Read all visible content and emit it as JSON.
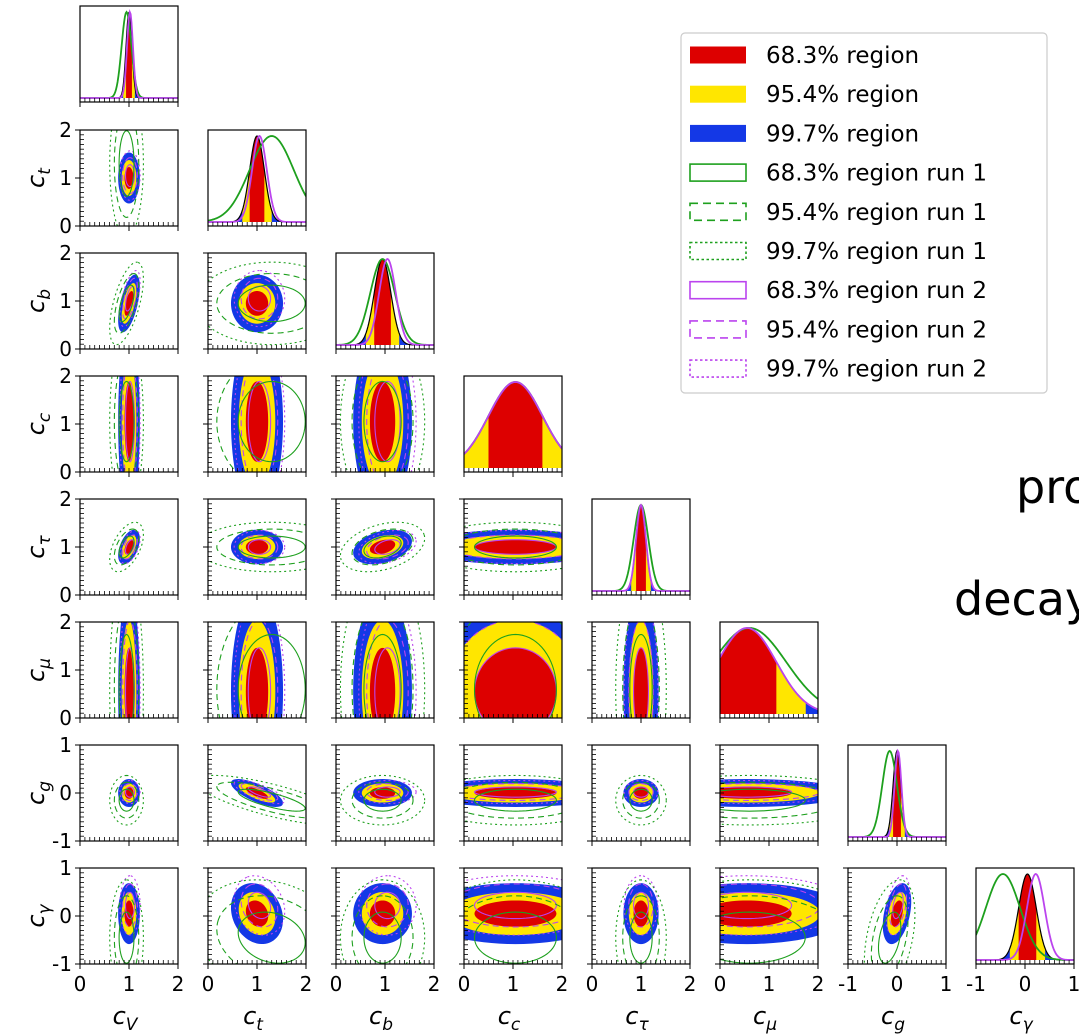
{
  "chart_data": {
    "type": "corner",
    "parameters": [
      {
        "key": "cV",
        "label": "c",
        "sub": "V",
        "range": [
          0,
          2
        ],
        "ticks": [
          "0",
          "1",
          "2"
        ]
      },
      {
        "key": "ct",
        "label": "c",
        "sub": "t",
        "range": [
          0,
          2
        ],
        "ticks": [
          "0",
          "1",
          "2"
        ]
      },
      {
        "key": "cb",
        "label": "c",
        "sub": "b",
        "range": [
          0,
          2
        ],
        "ticks": [
          "0",
          "1",
          "2"
        ]
      },
      {
        "key": "cc",
        "label": "c",
        "sub": "c",
        "range": [
          0,
          2
        ],
        "ticks": [
          "0",
          "1",
          "2"
        ]
      },
      {
        "key": "ctau",
        "label": "c",
        "sub": "τ",
        "range": [
          0,
          2
        ],
        "ticks": [
          "0",
          "1",
          "2"
        ]
      },
      {
        "key": "cmu",
        "label": "c",
        "sub": "μ",
        "range": [
          0,
          2
        ],
        "ticks": [
          "0",
          "1",
          "2"
        ]
      },
      {
        "key": "cg",
        "label": "c",
        "sub": "g",
        "range": [
          -1,
          1
        ],
        "ticks": [
          "-1",
          "0",
          "1"
        ]
      },
      {
        "key": "cgamma",
        "label": "c",
        "sub": "γ",
        "range": [
          -1,
          1
        ],
        "ticks": [
          "-1",
          "0",
          "1"
        ]
      }
    ],
    "posterior_estimates": {
      "combined": {
        "mean": [
          1.0,
          1.0,
          0.95,
          1.05,
          1.0,
          0.55,
          0.0,
          0.05
        ],
        "sigma": [
          0.06,
          0.15,
          0.17,
          0.55,
          0.1,
          0.6,
          0.08,
          0.18
        ]
      },
      "run1": {
        "mean": [
          0.95,
          1.3,
          0.95,
          1.05,
          1.0,
          0.6,
          -0.15,
          -0.45
        ],
        "sigma": [
          0.1,
          0.45,
          0.25,
          0.55,
          0.15,
          0.75,
          0.15,
          0.35
        ]
      },
      "run2": {
        "mean": [
          1.02,
          1.05,
          1.05,
          1.05,
          1.0,
          0.55,
          0.02,
          0.22
        ],
        "sigma": [
          0.06,
          0.15,
          0.17,
          0.55,
          0.1,
          0.6,
          0.07,
          0.18
        ]
      },
      "correlations": [
        [
          "cb",
          "cV",
          0.6
        ],
        [
          "ctau",
          "cV",
          0.5
        ],
        [
          "cb",
          "ctau",
          0.35
        ],
        [
          "cg",
          "ct",
          -0.75
        ],
        [
          "cgamma",
          "ct",
          -0.2
        ],
        [
          "cgamma",
          "cg",
          0.4
        ]
      ]
    },
    "colors": {
      "r68": "#dd0000",
      "r95": "#ffe600",
      "r99": "#1438e6",
      "run1": "#1ea01e",
      "run2": "#bb44ee",
      "edge": "#444444",
      "frame": "#000000"
    },
    "legend": {
      "placement": "top-right",
      "entries": [
        {
          "label": "68.3% region",
          "style": "fill",
          "color": "#dd0000"
        },
        {
          "label": "95.4% region",
          "style": "fill",
          "color": "#ffe600"
        },
        {
          "label": "99.7% region",
          "style": "fill",
          "color": "#1438e6"
        },
        {
          "label": "68.3% region run 1",
          "style": "solid",
          "color": "#1ea01e"
        },
        {
          "label": "95.4% region run 1",
          "style": "dashed",
          "color": "#1ea01e"
        },
        {
          "label": "99.7% region run 1",
          "style": "dotted",
          "color": "#1ea01e"
        },
        {
          "label": "68.3% region run 2",
          "style": "solid",
          "color": "#bb44ee"
        },
        {
          "label": "95.4% region run 2",
          "style": "dashed",
          "color": "#bb44ee"
        },
        {
          "label": "99.7% region run 2",
          "style": "dotted",
          "color": "#bb44ee"
        }
      ]
    },
    "grid": false
  },
  "background_text": [
    "pro",
    "decay"
  ]
}
